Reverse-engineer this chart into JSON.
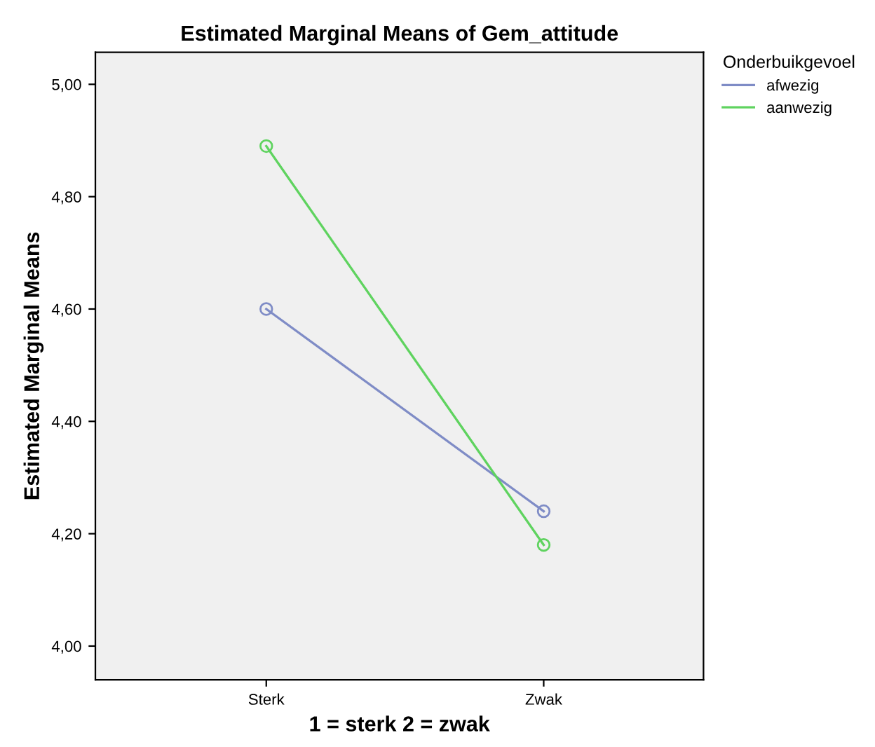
{
  "chart_data": {
    "type": "line",
    "title": "Estimated Marginal Means of Gem_attitude",
    "xlabel": "1 = sterk 2 = zwak",
    "ylabel": "Estimated Marginal Means",
    "legend_title": "Onderbuikgevoel",
    "categories": [
      "Sterk",
      "Zwak"
    ],
    "series": [
      {
        "name": "afwezig",
        "color": "#7f8cc6",
        "values": [
          4.6,
          4.24
        ]
      },
      {
        "name": "aanwezig",
        "color": "#5fd35f",
        "values": [
          4.89,
          4.18
        ]
      }
    ],
    "ylim": [
      3.94,
      5.057
    ],
    "yticks": [
      {
        "value": 4.0,
        "label": "4,00"
      },
      {
        "value": 4.2,
        "label": "4,20"
      },
      {
        "value": 4.4,
        "label": "4,40"
      },
      {
        "value": 4.6,
        "label": "4,60"
      },
      {
        "value": 4.8,
        "label": "4,80"
      },
      {
        "value": 5.0,
        "label": "5,00"
      }
    ],
    "marker": "circle",
    "line_style": "solid",
    "grid": false,
    "legend": "top right"
  }
}
